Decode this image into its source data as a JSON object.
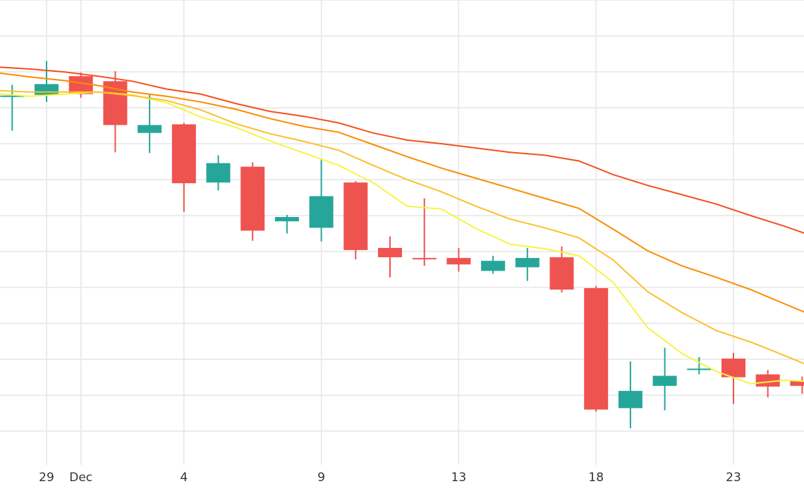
{
  "chart_data": {
    "type": "candlestick",
    "title": "",
    "xlabel": "",
    "ylabel": "",
    "grid": true,
    "x_ticks": [
      {
        "label": "29",
        "day": 29
      },
      {
        "label": "Dec",
        "day": 30
      },
      {
        "label": "4",
        "day": 33
      },
      {
        "label": "9",
        "day": 37
      },
      {
        "label": "13",
        "day": 41
      },
      {
        "label": "18",
        "day": 45
      },
      {
        "label": "23",
        "day": 49
      }
    ],
    "candles": [
      {
        "day": 28,
        "open": 103.2,
        "close": 103.4,
        "high": 106.4,
        "low": 93.6
      },
      {
        "day": 29,
        "open": 103.6,
        "close": 106.6,
        "high": 113.0,
        "low": 101.6
      },
      {
        "day": 30,
        "open": 108.8,
        "close": 103.8,
        "high": 109.8,
        "low": 102.8
      },
      {
        "day": 31,
        "open": 107.4,
        "close": 95.2,
        "high": 110.2,
        "low": 87.6
      },
      {
        "day": 32,
        "open": 93.0,
        "close": 95.2,
        "high": 103.6,
        "low": 87.4
      },
      {
        "day": 33,
        "open": 95.4,
        "close": 79.0,
        "high": 95.8,
        "low": 71.0
      },
      {
        "day": 34,
        "open": 79.2,
        "close": 84.6,
        "high": 86.8,
        "low": 77.0
      },
      {
        "day": 35,
        "open": 83.6,
        "close": 65.8,
        "high": 84.8,
        "low": 63.0
      },
      {
        "day": 36,
        "open": 68.4,
        "close": 69.6,
        "high": 70.2,
        "low": 65.0
      },
      {
        "day": 37,
        "open": 66.6,
        "close": 75.4,
        "high": 85.8,
        "low": 62.8
      },
      {
        "day": 38,
        "open": 79.2,
        "close": 60.4,
        "high": 79.6,
        "low": 57.8
      },
      {
        "day": 39,
        "open": 61.0,
        "close": 58.4,
        "high": 64.2,
        "low": 52.8
      },
      {
        "day": 40,
        "open": 58.2,
        "close": 58.0,
        "high": 74.8,
        "low": 56.0
      },
      {
        "day": 41,
        "open": 58.2,
        "close": 56.4,
        "high": 61.0,
        "low": 54.4
      },
      {
        "day": 42,
        "open": 54.6,
        "close": 57.4,
        "high": 58.8,
        "low": 53.8
      },
      {
        "day": 43,
        "open": 55.6,
        "close": 58.2,
        "high": 61.0,
        "low": 51.8
      },
      {
        "day": 44,
        "open": 58.4,
        "close": 49.4,
        "high": 61.4,
        "low": 48.6
      },
      {
        "day": 45,
        "open": 49.8,
        "close": 16.0,
        "high": 50.4,
        "low": 15.4
      },
      {
        "day": 46,
        "open": 16.4,
        "close": 21.2,
        "high": 29.4,
        "low": 10.8
      },
      {
        "day": 47,
        "open": 22.6,
        "close": 25.4,
        "high": 33.2,
        "low": 15.8
      },
      {
        "day": 48,
        "open": 27.0,
        "close": 27.4,
        "high": 30.6,
        "low": 25.8
      },
      {
        "day": 49,
        "open": 30.2,
        "close": 25.0,
        "high": 31.8,
        "low": 17.6
      },
      {
        "day": 50,
        "open": 25.8,
        "close": 22.4,
        "high": 27.0,
        "low": 19.4
      },
      {
        "day": 51,
        "open": 24.0,
        "close": 22.6,
        "high": 25.2,
        "low": 20.4
      }
    ],
    "moving_averages": [
      {
        "color": "#f5f542",
        "points": [
          [
            27.5,
            104.0
          ],
          [
            28.5,
            103.2
          ],
          [
            29.5,
            103.8
          ],
          [
            30.5,
            104.4
          ],
          [
            31.5,
            103.6
          ],
          [
            32.5,
            101.4
          ],
          [
            33.5,
            97.4
          ],
          [
            34.5,
            94.6
          ],
          [
            35.5,
            90.8
          ],
          [
            36.5,
            87.4
          ],
          [
            37.5,
            84.0
          ],
          [
            38.5,
            79.2
          ],
          [
            39.5,
            72.6
          ],
          [
            40.5,
            71.8
          ],
          [
            41.5,
            66.4
          ],
          [
            42.5,
            62.0
          ],
          [
            43.5,
            60.8
          ],
          [
            44.5,
            58.8
          ],
          [
            45.5,
            51.4
          ],
          [
            46.5,
            38.8
          ],
          [
            47.5,
            31.6
          ],
          [
            48.5,
            26.6
          ],
          [
            49.5,
            23.2
          ],
          [
            50.5,
            24.2
          ],
          [
            51.5,
            23.6
          ]
        ]
      },
      {
        "color": "#fbc02d",
        "points": [
          [
            27.5,
            104.8
          ],
          [
            28.5,
            104.4
          ],
          [
            29.5,
            104.4
          ],
          [
            30.5,
            104.4
          ],
          [
            31.5,
            103.4
          ],
          [
            32.5,
            102.0
          ],
          [
            33.5,
            99.4
          ],
          [
            34.5,
            95.6
          ],
          [
            35.5,
            92.8
          ],
          [
            36.5,
            90.6
          ],
          [
            37.5,
            88.2
          ],
          [
            38.5,
            84.0
          ],
          [
            39.5,
            80.0
          ],
          [
            40.5,
            76.6
          ],
          [
            41.5,
            72.6
          ],
          [
            42.5,
            69.0
          ],
          [
            43.5,
            66.6
          ],
          [
            44.5,
            63.8
          ],
          [
            45.5,
            57.6
          ],
          [
            46.5,
            48.8
          ],
          [
            47.5,
            43.0
          ],
          [
            48.5,
            38.0
          ],
          [
            49.5,
            34.8
          ],
          [
            50.5,
            31.0
          ],
          [
            51.5,
            27.0
          ]
        ]
      },
      {
        "color": "#fb8c00",
        "points": [
          [
            27.5,
            109.8
          ],
          [
            28.5,
            108.6
          ],
          [
            29.5,
            107.6
          ],
          [
            30.5,
            106.2
          ],
          [
            31.5,
            104.4
          ],
          [
            32.5,
            103.2
          ],
          [
            33.5,
            101.6
          ],
          [
            34.5,
            99.6
          ],
          [
            35.5,
            97.0
          ],
          [
            36.5,
            94.8
          ],
          [
            37.5,
            93.2
          ],
          [
            38.5,
            89.8
          ],
          [
            39.5,
            86.4
          ],
          [
            40.5,
            83.2
          ],
          [
            41.5,
            80.4
          ],
          [
            42.5,
            77.6
          ],
          [
            43.5,
            74.8
          ],
          [
            44.5,
            72.0
          ],
          [
            45.5,
            66.2
          ],
          [
            46.5,
            60.2
          ],
          [
            47.5,
            56.0
          ],
          [
            48.5,
            52.8
          ],
          [
            49.5,
            49.4
          ],
          [
            50.5,
            45.4
          ],
          [
            51.5,
            41.4
          ]
        ]
      },
      {
        "color": "#f4511e",
        "points": [
          [
            27.5,
            111.4
          ],
          [
            28.5,
            110.8
          ],
          [
            29.5,
            110.0
          ],
          [
            30.5,
            108.8
          ],
          [
            31.5,
            107.4
          ],
          [
            32.5,
            105.2
          ],
          [
            33.5,
            103.8
          ],
          [
            34.5,
            101.2
          ],
          [
            35.5,
            99.0
          ],
          [
            36.5,
            97.6
          ],
          [
            37.5,
            95.8
          ],
          [
            38.5,
            93.0
          ],
          [
            39.5,
            91.0
          ],
          [
            40.5,
            90.0
          ],
          [
            41.5,
            88.8
          ],
          [
            42.5,
            87.6
          ],
          [
            43.5,
            86.8
          ],
          [
            44.5,
            85.2
          ],
          [
            45.5,
            81.4
          ],
          [
            46.5,
            78.4
          ],
          [
            47.5,
            75.8
          ],
          [
            48.5,
            73.2
          ],
          [
            49.5,
            70.0
          ],
          [
            50.5,
            67.0
          ],
          [
            51.5,
            63.6
          ]
        ]
      }
    ],
    "colors": {
      "up": "#26a69a",
      "down": "#ef5350",
      "grid": "#e6e6e6",
      "text": "#333333"
    }
  }
}
